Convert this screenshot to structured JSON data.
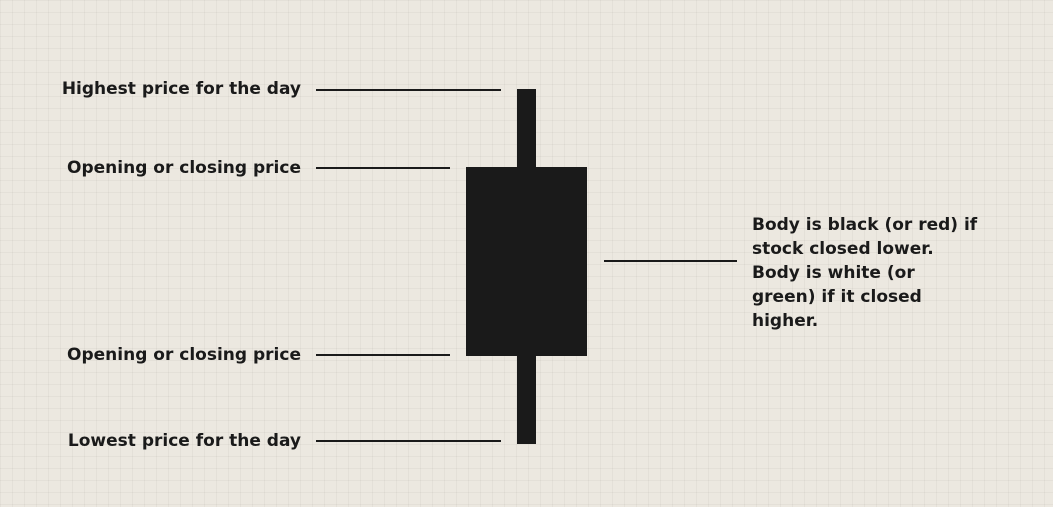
{
  "labels": {
    "high": "Highest price for the day",
    "open_close_top": "Opening or closing price",
    "open_close_bottom": "Opening or closing price",
    "low": "Lowest price for the day"
  },
  "body_note": "Body is black (or red) if stock closed lower. Body is white (or green) if it closed higher.",
  "colors": {
    "background": "#ece8e0",
    "ink": "#1a1a1a"
  }
}
